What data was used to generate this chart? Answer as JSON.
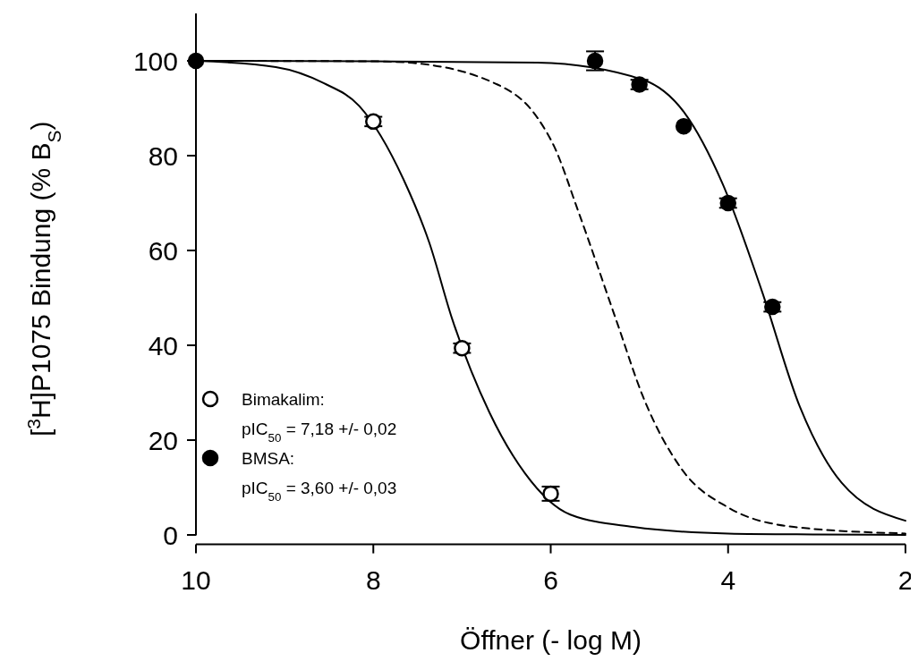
{
  "chart_data": {
    "type": "scatter",
    "xlabel": "Öffner (- log M)",
    "ylabel": "[$^{3}$H]P1075 Bindung (% B$_{S}$)",
    "xlim": [
      10,
      2
    ],
    "xticks": [
      10,
      8,
      6,
      4,
      2
    ],
    "ylim": [
      -2,
      110
    ],
    "yticks": [
      0,
      20,
      40,
      60,
      80,
      100
    ],
    "grid": false,
    "legend": "bottom left",
    "annotations": [
      "pIC$_{50}$ = 7,18 +/- 0,02",
      "pIC$_{50}$ = 3,60 +/- 0,03"
    ],
    "series": [
      {
        "type": "line",
        "color": "#000000",
        "line_style": "solid",
        "x": [
          10,
          9.1,
          8.56,
          8.16,
          7.66,
          7.37,
          7.11,
          6.69,
          6.29,
          5.78,
          5.07,
          4,
          3,
          2
        ],
        "values": [
          100,
          98.7,
          95.3,
          90.5,
          75,
          61.7,
          45.5,
          25.8,
          13,
          4.3,
          1.7,
          0.3,
          0.1,
          0
        ]
      },
      {
        "type": "line",
        "color": "#000000",
        "line_style": "dashed",
        "x": [
          10,
          8,
          7.66,
          6.6,
          6.15,
          5.96,
          5.69,
          5.25,
          4.96,
          4.52,
          3.99,
          3.26,
          2
        ],
        "values": [
          100,
          99.9,
          99.7,
          95,
          88,
          81.9,
          68.3,
          44.7,
          29.2,
          13.8,
          5.7,
          1.7,
          0.3
        ]
      },
      {
        "type": "line",
        "color": "#000000",
        "line_style": "solid",
        "x": [
          10,
          8,
          6.15,
          4.96,
          4.49,
          4.06,
          3.62,
          3.19,
          2.72,
          2
        ],
        "values": [
          100,
          99.9,
          99.6,
          96,
          89,
          74,
          51.5,
          27,
          11,
          3
        ]
      },
      {
        "marker": "circle",
        "name": "Bimakalim:",
        "color": "#ffffff",
        "x": [
          8,
          7,
          6
        ],
        "values": [
          87.2,
          39.4,
          8.7
        ],
        "errors": [
          1,
          1,
          1.5
        ]
      },
      {
        "marker": "circle",
        "name": "BMSA:",
        "color": "#000000",
        "x": [
          10,
          5.5,
          5,
          4.5,
          4,
          3.5
        ],
        "values": [
          100,
          100,
          95,
          86.2,
          70,
          48.1
        ],
        "errors": [
          null,
          2,
          1,
          null,
          1,
          1
        ]
      }
    ]
  }
}
